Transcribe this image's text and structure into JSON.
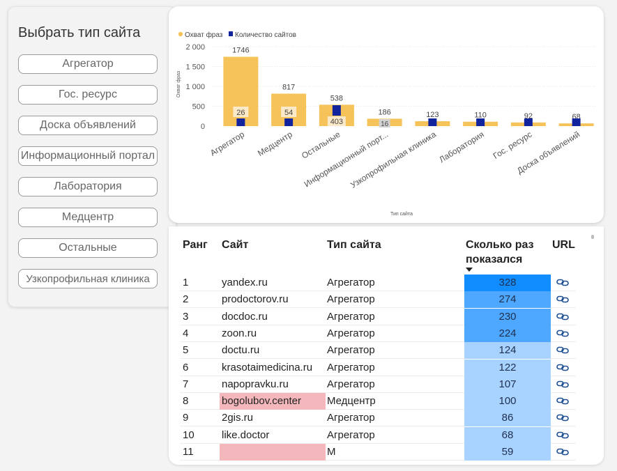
{
  "slicer": {
    "title": "Выбрать тип сайта",
    "items": [
      "Агрегатор",
      "Гос. ресурс",
      "Доска объявлений",
      "Информационный портал",
      "Лаборатория",
      "Медцентр",
      "Остальные",
      "Узкопрофильная клиника"
    ]
  },
  "chart_data": {
    "type": "bar",
    "title": "",
    "xlabel": "Тип сайта",
    "ylabel": "Охват фраз",
    "legend": {
      "position": "top-left"
    },
    "categories": [
      "Агрегатор",
      "Медцентр",
      "Остальные",
      "Информационный порт...",
      "Узкопрофильная клиника",
      "Лаборатория",
      "Гос. ресурс",
      "Доска объявлений"
    ],
    "series": [
      {
        "name": "Охват фраз",
        "color": "#f5c35a",
        "values": [
          1746,
          817,
          538,
          186,
          123,
          110,
          92,
          68
        ]
      },
      {
        "name": "Количество сайтов",
        "color": "#12239e",
        "values": [
          26,
          54,
          403,
          16,
          null,
          null,
          null,
          null
        ]
      }
    ],
    "value_labels": [
      "1746",
      "817",
      "538",
      "186",
      "123",
      "110",
      "92",
      "68"
    ],
    "count_labels": [
      "26",
      "54",
      "403",
      "16",
      "",
      "",
      "",
      ""
    ],
    "yticks": [
      "2 000",
      "1 500",
      "1 000",
      "500",
      "0"
    ],
    "ylim": [
      0,
      2000
    ],
    "grid": true
  },
  "table": {
    "headers": {
      "rank": "Ранг",
      "site": "Сайт",
      "type": "Тип сайта",
      "count_line1": "Сколько раз",
      "count_line2": "показался",
      "url": "URL"
    },
    "count_colors": {
      "high": "#118dff",
      "mid": "#4fa8ff",
      "low": "#a8d2ff",
      "highlight_site": "#f4b8bc"
    },
    "rows": [
      {
        "rank": "1",
        "site": "yandex.ru",
        "type": "Агрегатор",
        "count": "328",
        "highlight": false
      },
      {
        "rank": "2",
        "site": "prodoctorov.ru",
        "type": "Агрегатор",
        "count": "274",
        "highlight": false
      },
      {
        "rank": "3",
        "site": "docdoc.ru",
        "type": "Агрегатор",
        "count": "230",
        "highlight": false
      },
      {
        "rank": "4",
        "site": "zoon.ru",
        "type": "Агрегатор",
        "count": "224",
        "highlight": false
      },
      {
        "rank": "5",
        "site": "doctu.ru",
        "type": "Агрегатор",
        "count": "124",
        "highlight": false
      },
      {
        "rank": "6",
        "site": "krasotaimedicina.ru",
        "type": "Агрегатор",
        "count": "122",
        "highlight": false
      },
      {
        "rank": "7",
        "site": "napopravku.ru",
        "type": "Агрегатор",
        "count": "107",
        "highlight": false
      },
      {
        "rank": "8",
        "site": "bogolubov.center",
        "type": "Медцентр",
        "count": "100",
        "highlight": true
      },
      {
        "rank": "9",
        "site": "2gis.ru",
        "type": "Агрегатор",
        "count": "86",
        "highlight": false
      },
      {
        "rank": "10",
        "site": "like.doctor",
        "type": "Агрегатор",
        "count": "68",
        "highlight": false
      },
      {
        "rank": "11",
        "site": "",
        "type": "М",
        "count": "59",
        "highlight": true
      }
    ]
  }
}
